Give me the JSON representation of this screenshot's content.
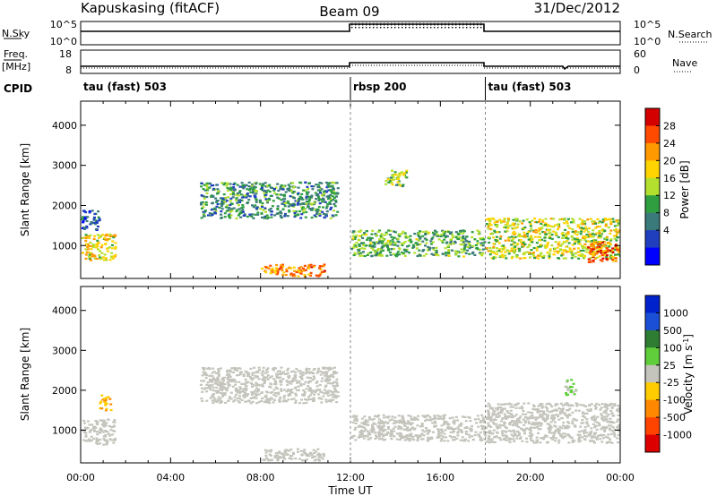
{
  "header": {
    "station": "Kapuskasing (fitACF)",
    "beam": "Beam 09",
    "date": "31/Dec/2012"
  },
  "strip_labels": {
    "nsky": "N.Sky",
    "nsearch": "N.Search",
    "freq_line1": "Freq.",
    "freq_line2": "[MHz]",
    "nave": "Nave",
    "cpid": "CPID"
  },
  "strip_ticks": {
    "nsky_top": "10^5",
    "nsky_bottom": "10^0",
    "freq_top": "18",
    "freq_bottom": "8",
    "nave_top": "60",
    "nave_bottom": "0"
  },
  "cpid_segments": [
    {
      "label": "tau (fast) 503",
      "start_h": 0,
      "end_h": 12
    },
    {
      "label": "rbsp 200",
      "start_h": 12,
      "end_h": 18
    },
    {
      "label": "tau (fast) 503",
      "start_h": 18,
      "end_h": 24
    }
  ],
  "colorbars": {
    "power": {
      "label": "Power [dB]",
      "ticks": [
        "28",
        "24",
        "20",
        "16",
        "12",
        "8",
        "4"
      ],
      "colors": [
        "#d40000",
        "#ff4a00",
        "#ff9900",
        "#ffd400",
        "#b3e02e",
        "#2e9e40",
        "#3a7a7a",
        "#1f3fbf",
        "#0000ff"
      ]
    },
    "velocity": {
      "label": "Velocity [m s",
      "label_sup": "-1",
      "label_end": "]",
      "ticks": [
        "1000",
        "500",
        "100",
        "25",
        "-25",
        "-100",
        "-500",
        "-1000"
      ],
      "colors": [
        "#0022cc",
        "#1a4fd6",
        "#2e7d32",
        "#5fce3a",
        "#c4c4bc",
        "#ffcc00",
        "#ff8800",
        "#ff4400",
        "#dd0000"
      ]
    }
  },
  "chart_data": [
    {
      "type": "heatmap",
      "title": "",
      "xlabel": "Time UT",
      "ylabel": "Slant Range [km]",
      "colorbar_label": "Power [dB]",
      "xlim": [
        0,
        24
      ],
      "ylim": [
        180,
        4600
      ],
      "xticks": [
        "00:00",
        "04:00",
        "08:00",
        "12:00",
        "16:00",
        "20:00",
        "00:00"
      ],
      "yticks": [
        1000,
        2000,
        3000,
        4000
      ],
      "clim": [
        0,
        30
      ],
      "features": [
        {
          "t_start": 0.0,
          "t_end": 1.5,
          "r_start": 650,
          "r_end": 1300,
          "value": 18
        },
        {
          "t_start": 0.0,
          "t_end": 0.8,
          "r_start": 1400,
          "r_end": 1900,
          "value": 7
        },
        {
          "t_start": 5.3,
          "t_end": 11.4,
          "r_start": 1700,
          "r_end": 2600,
          "value": 10
        },
        {
          "t_start": 8.0,
          "t_end": 10.8,
          "r_start": 250,
          "r_end": 550,
          "value": 22
        },
        {
          "t_start": 12.0,
          "t_end": 18.0,
          "r_start": 750,
          "r_end": 1400,
          "value": 12
        },
        {
          "t_start": 13.5,
          "t_end": 14.5,
          "r_start": 2500,
          "r_end": 2900,
          "value": 14
        },
        {
          "t_start": 18.0,
          "t_end": 24.0,
          "r_start": 700,
          "r_end": 1700,
          "value": 16
        },
        {
          "t_start": 22.5,
          "t_end": 24.0,
          "r_start": 600,
          "r_end": 1100,
          "value": 24
        }
      ]
    },
    {
      "type": "heatmap",
      "title": "",
      "xlabel": "Time UT",
      "ylabel": "Slant Range [km]",
      "colorbar_label": "Velocity [m s^-1]",
      "xlim": [
        0,
        24
      ],
      "ylim": [
        180,
        4600
      ],
      "xticks": [
        "00:00",
        "04:00",
        "08:00",
        "12:00",
        "16:00",
        "20:00",
        "00:00"
      ],
      "yticks": [
        1000,
        2000,
        3000,
        4000
      ],
      "clim": [
        -1000,
        1000
      ],
      "features": [
        {
          "t_start": 0.0,
          "t_end": 1.5,
          "r_start": 650,
          "r_end": 1300,
          "value": 0
        },
        {
          "t_start": 0.8,
          "t_end": 1.3,
          "r_start": 1500,
          "r_end": 1900,
          "value": -300
        },
        {
          "t_start": 5.3,
          "t_end": 11.4,
          "r_start": 1700,
          "r_end": 2600,
          "value": 0
        },
        {
          "t_start": 8.0,
          "t_end": 10.8,
          "r_start": 250,
          "r_end": 550,
          "value": 0
        },
        {
          "t_start": 12.0,
          "t_end": 18.0,
          "r_start": 750,
          "r_end": 1400,
          "value": 0
        },
        {
          "t_start": 18.0,
          "t_end": 24.0,
          "r_start": 700,
          "r_end": 1700,
          "value": 0
        },
        {
          "t_start": 21.5,
          "t_end": 22.0,
          "r_start": 1900,
          "r_end": 2300,
          "value": 150
        }
      ]
    }
  ]
}
